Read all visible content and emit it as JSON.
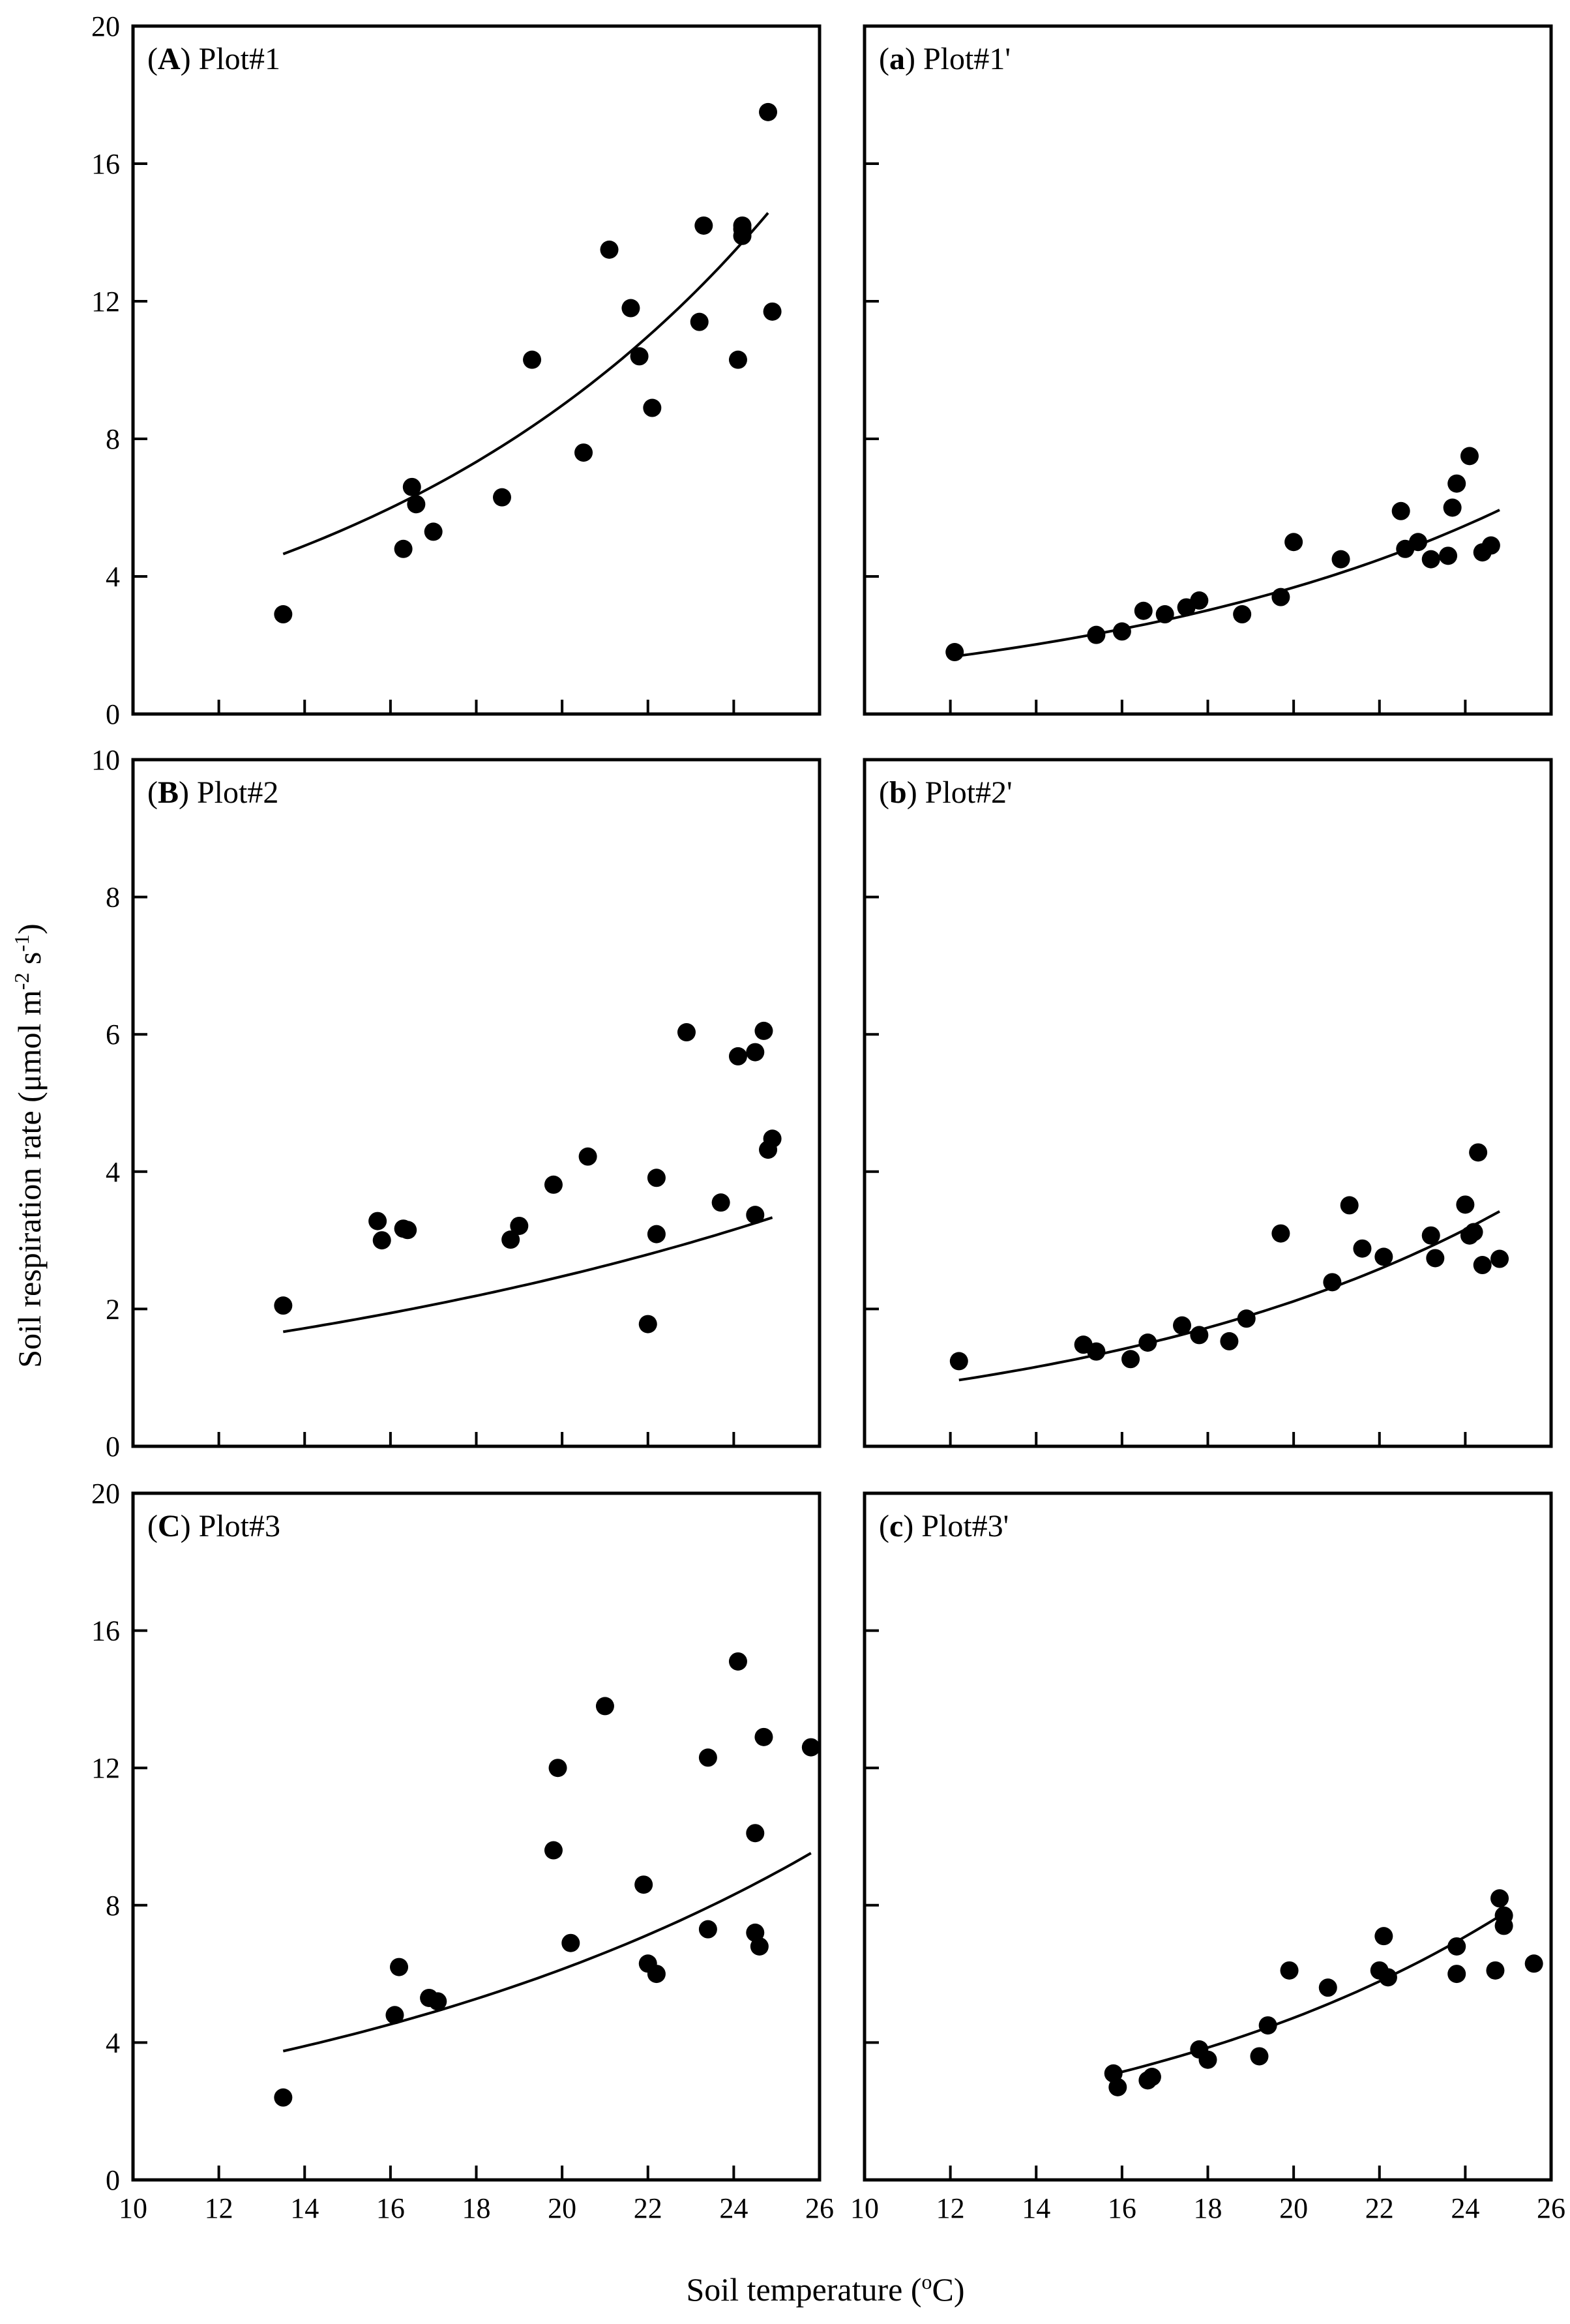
{
  "figure": {
    "xlabel_main": "Soil temperature (",
    "xlabel_deg": "o",
    "xlabel_unit": "C)",
    "ylabel_main": "Soil respiration rate (μmol m",
    "ylabel_sup1": "-2",
    "ylabel_mid": " s",
    "ylabel_sup2": "-1",
    "ylabel_end": ")"
  },
  "chart_data": [
    {
      "type": "scatter",
      "id": "A",
      "col": 0,
      "row": 0,
      "title_letter": "A",
      "title_text": "Plot#1",
      "xlim": [
        10,
        26
      ],
      "ylim": [
        0,
        20
      ],
      "yticks": [
        0,
        4,
        8,
        12,
        16,
        20
      ],
      "ytick_labels": [
        "0",
        "4",
        "8",
        "12",
        "16",
        "20"
      ],
      "xticks": [
        10,
        12,
        14,
        16,
        18,
        20,
        22,
        24,
        26
      ],
      "x": [
        13.5,
        16.3,
        16.5,
        16.6,
        17.0,
        18.6,
        19.3,
        20.5,
        21.1,
        21.6,
        21.8,
        22.1,
        23.2,
        23.3,
        24.1,
        24.2,
        24.2,
        24.2,
        24.8,
        24.9
      ],
      "y": [
        2.9,
        4.8,
        6.6,
        6.1,
        5.3,
        6.3,
        10.3,
        7.6,
        13.5,
        11.8,
        10.4,
        8.9,
        11.4,
        14.2,
        10.3,
        13.9,
        14.2,
        14.1,
        17.5,
        11.7
      ],
      "fit": {
        "a": 1.19,
        "b": 0.101,
        "x0": 13.5,
        "x1": 24.8
      }
    },
    {
      "type": "scatter",
      "id": "a",
      "col": 1,
      "row": 0,
      "title_letter": "a",
      "title_text": "Plot#1'",
      "xlim": [
        10,
        26
      ],
      "ylim": [
        0,
        20
      ],
      "yticks": [
        0,
        4,
        8,
        12,
        16,
        20
      ],
      "ytick_labels": [],
      "xticks": [
        10,
        12,
        14,
        16,
        18,
        20,
        22,
        24,
        26
      ],
      "x": [
        12.1,
        15.4,
        16.0,
        16.5,
        17.0,
        17.5,
        17.8,
        18.8,
        19.7,
        20.0,
        21.1,
        22.5,
        22.6,
        22.9,
        23.2,
        23.6,
        23.7,
        23.8,
        24.1,
        24.4,
        24.6
      ],
      "y": [
        1.8,
        2.3,
        2.4,
        3.0,
        2.9,
        3.1,
        3.3,
        2.9,
        3.4,
        5.0,
        4.5,
        5.9,
        4.8,
        5.0,
        4.5,
        4.6,
        6.0,
        6.7,
        7.5,
        4.7,
        4.9
      ],
      "fit": {
        "a": 0.503,
        "b": 0.0995,
        "x0": 12.1,
        "x1": 24.8
      }
    },
    {
      "type": "scatter",
      "id": "B",
      "col": 0,
      "row": 1,
      "title_letter": "B",
      "title_text": "Plot#2",
      "xlim": [
        10,
        26
      ],
      "ylim": [
        0,
        10
      ],
      "yticks": [
        0,
        2,
        4,
        6,
        8,
        10
      ],
      "ytick_labels": [
        "0",
        "2",
        "4",
        "6",
        "8",
        "10"
      ],
      "xticks": [
        10,
        12,
        14,
        16,
        18,
        20,
        22,
        24,
        26
      ],
      "x": [
        13.5,
        15.7,
        15.8,
        16.3,
        16.4,
        18.8,
        19.0,
        19.8,
        20.6,
        22.0,
        22.2,
        22.2,
        22.9,
        23.7,
        24.1,
        24.5,
        24.5,
        24.7,
        24.8,
        24.9
      ],
      "y": [
        2.05,
        3.28,
        3.0,
        3.17,
        3.15,
        3.01,
        3.21,
        3.81,
        4.22,
        1.78,
        3.91,
        3.09,
        6.03,
        3.55,
        5.68,
        3.37,
        5.74,
        6.05,
        4.32,
        4.48
      ],
      "fit": {
        "a": 0.735,
        "b": 0.0607,
        "x0": 13.5,
        "x1": 24.9
      }
    },
    {
      "type": "scatter",
      "id": "b",
      "col": 1,
      "row": 1,
      "title_letter": "b",
      "title_text": "Plot#2'",
      "xlim": [
        10,
        26
      ],
      "ylim": [
        0,
        10
      ],
      "yticks": [
        0,
        2,
        4,
        6,
        8,
        10
      ],
      "ytick_labels": [],
      "xticks": [
        10,
        12,
        14,
        16,
        18,
        20,
        22,
        24,
        26
      ],
      "x": [
        12.2,
        15.1,
        15.4,
        16.2,
        16.6,
        17.4,
        17.8,
        18.5,
        18.9,
        19.7,
        20.9,
        21.3,
        21.6,
        22.1,
        23.2,
        23.3,
        24.0,
        24.1,
        24.2,
        24.3,
        24.4,
        24.8
      ],
      "y": [
        1.24,
        1.48,
        1.38,
        1.27,
        1.51,
        1.76,
        1.62,
        1.53,
        1.86,
        3.1,
        2.39,
        3.51,
        2.88,
        2.76,
        3.07,
        2.74,
        3.52,
        3.07,
        3.12,
        4.28,
        2.64,
        2.73
      ],
      "fit": {
        "a": 0.283,
        "b": 0.1005,
        "x0": 12.2,
        "x1": 24.8
      }
    },
    {
      "type": "scatter",
      "id": "C",
      "col": 0,
      "row": 2,
      "title_letter": "C",
      "title_text": "Plot#3",
      "xlim": [
        10,
        26
      ],
      "ylim": [
        0,
        20
      ],
      "yticks": [
        0,
        4,
        8,
        12,
        16,
        20
      ],
      "ytick_labels": [
        "0",
        "4",
        "8",
        "12",
        "16",
        "20"
      ],
      "xticks": [
        10,
        12,
        14,
        16,
        18,
        20,
        22,
        24,
        26
      ],
      "xtick_labels": [
        "10",
        "12",
        "14",
        "16",
        "18",
        "20",
        "22",
        "24",
        "26"
      ],
      "x": [
        13.5,
        16.1,
        16.2,
        16.9,
        17.1,
        19.8,
        19.9,
        20.2,
        21.0,
        21.9,
        22.0,
        22.2,
        23.4,
        23.4,
        24.1,
        24.5,
        24.5,
        24.6,
        24.7,
        25.8
      ],
      "y": [
        2.4,
        4.8,
        6.2,
        5.3,
        5.2,
        9.6,
        12.0,
        6.9,
        13.8,
        8.6,
        6.3,
        6.0,
        12.3,
        7.3,
        15.1,
        10.1,
        7.2,
        6.8,
        12.9,
        12.6
      ],
      "fit": {
        "a": 1.35,
        "b": 0.0757,
        "x0": 13.5,
        "x1": 25.8
      }
    },
    {
      "type": "scatter",
      "id": "c",
      "col": 1,
      "row": 2,
      "title_letter": "c",
      "title_text": "Plot#3'",
      "xlim": [
        10,
        26
      ],
      "ylim": [
        0,
        20
      ],
      "yticks": [
        0,
        4,
        8,
        12,
        16,
        20
      ],
      "ytick_labels": [],
      "xticks": [
        10,
        12,
        14,
        16,
        18,
        20,
        22,
        24,
        26
      ],
      "xtick_labels": [
        "10",
        "12",
        "14",
        "16",
        "18",
        "20",
        "22",
        "24",
        "26"
      ],
      "x": [
        15.8,
        15.9,
        16.6,
        16.7,
        17.8,
        18.0,
        19.2,
        19.4,
        19.9,
        20.8,
        22.0,
        22.1,
        22.2,
        23.8,
        23.8,
        24.7,
        24.8,
        24.9,
        24.9,
        25.6
      ],
      "y": [
        3.1,
        2.7,
        2.9,
        3.0,
        3.8,
        3.5,
        3.6,
        4.5,
        6.1,
        5.6,
        6.1,
        7.1,
        5.9,
        6.8,
        6.0,
        6.1,
        8.2,
        7.7,
        7.4,
        6.3
      ],
      "fit": {
        "a": 0.62,
        "b": 0.1015,
        "x0": 15.8,
        "x1": 25.0
      }
    }
  ]
}
